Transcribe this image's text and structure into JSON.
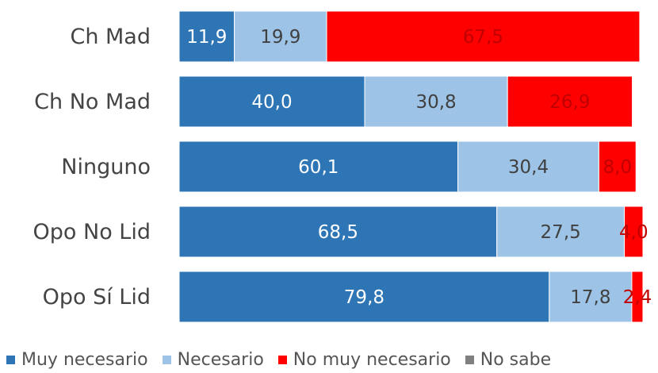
{
  "chart_data": {
    "type": "bar",
    "orientation": "horizontal",
    "stacked": true,
    "categories": [
      "Ch Mad",
      "Ch No Mad",
      "Ninguno",
      "Opo No Lid",
      "Opo Sí Lid"
    ],
    "series": [
      {
        "name": "Muy necesario",
        "color": "#2e75b6",
        "label_color": "#ffffff",
        "values": [
          11.9,
          40.0,
          60.1,
          68.5,
          79.8
        ],
        "labels": [
          "11,9",
          "40,0",
          "60,1",
          "68,5",
          "79,8"
        ]
      },
      {
        "name": "Necesario",
        "color": "#9dc3e6",
        "label_color": "#404040",
        "values": [
          19.9,
          30.8,
          30.4,
          27.5,
          17.8
        ],
        "labels": [
          "19,9",
          "30,8",
          "30,4",
          "27,5",
          "17,8"
        ]
      },
      {
        "name": "No muy necesario",
        "color": "#ff0000",
        "label_color": "#c00000",
        "values": [
          67.5,
          26.9,
          8.0,
          4.0,
          2.4
        ],
        "labels": [
          "67,5",
          "26,9",
          "8,0",
          "4,0",
          "2,4"
        ]
      },
      {
        "name": "No sabe",
        "color": "#808080",
        "label_color": "#404040",
        "values": [
          0,
          0,
          0,
          0,
          0
        ],
        "labels": [
          "",
          "",
          "",
          "",
          ""
        ]
      }
    ],
    "xlim": [
      0,
      100
    ],
    "grid": false,
    "legend_position": "bottom"
  }
}
